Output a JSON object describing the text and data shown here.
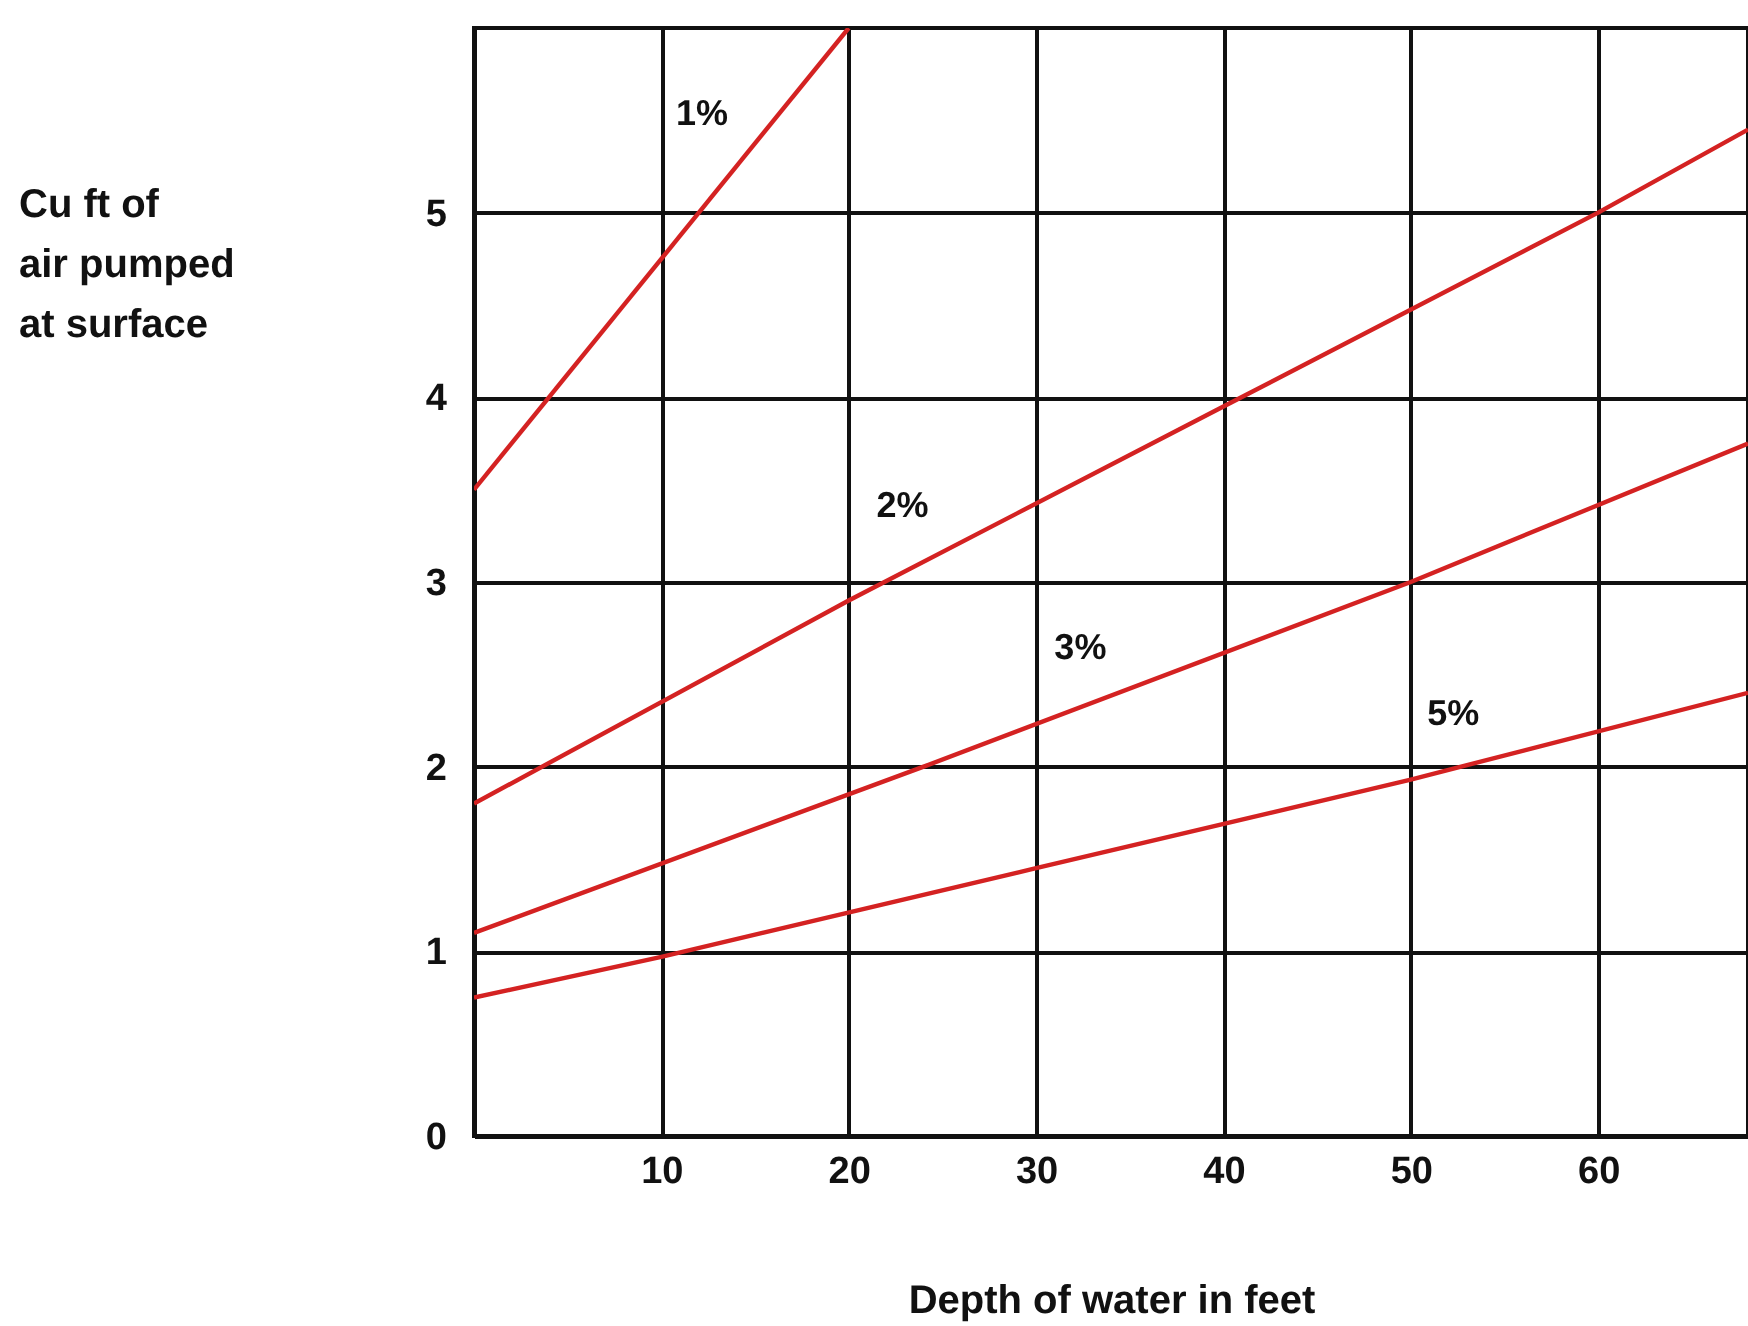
{
  "chart_data": {
    "type": "line",
    "xlabel": "Depth of water in feet",
    "ylabel": "Cu ft of air pumped at surface",
    "xlim": [
      0,
      68
    ],
    "ylim": [
      0,
      6
    ],
    "xticks": [
      10,
      20,
      30,
      40,
      50,
      60
    ],
    "yticks": [
      {
        "value": 0,
        "label": "0"
      },
      {
        "value": 1,
        "label": "1"
      },
      {
        "value": 2,
        "label": "2"
      },
      {
        "value": 3,
        "label": "3"
      },
      {
        "value": 4,
        "label": "4"
      },
      {
        "value": 5,
        "label": "5"
      }
    ],
    "grid": true,
    "line_style": "solid",
    "marker": "none",
    "series": [
      {
        "color": "#d42222",
        "x": [
          0,
          20
        ],
        "values": [
          3.5,
          6
        ]
      },
      {
        "color": "#d42222",
        "x": [
          0,
          20,
          40,
          60,
          68
        ],
        "values": [
          1.8,
          2.9,
          3.95,
          5.0,
          5.45
        ]
      },
      {
        "color": "#d42222",
        "x": [
          0,
          24,
          50,
          68
        ],
        "values": [
          1.1,
          2.0,
          3.0,
          3.75
        ]
      },
      {
        "color": "#d42222",
        "x": [
          0,
          10,
          30,
          50,
          68
        ],
        "values": [
          0.75,
          0.97,
          1.45,
          1.93,
          2.4
        ]
      }
    ],
    "annotations": [
      {
        "text": "1%",
        "x": 14.3,
        "y": 5.29
      },
      {
        "text": "2%",
        "x": 25,
        "y": 3.17
      },
      {
        "text": "3%",
        "x": 34.5,
        "y": 2.4
      },
      {
        "text": "5%",
        "x": 54.4,
        "y": 2.04
      }
    ]
  }
}
